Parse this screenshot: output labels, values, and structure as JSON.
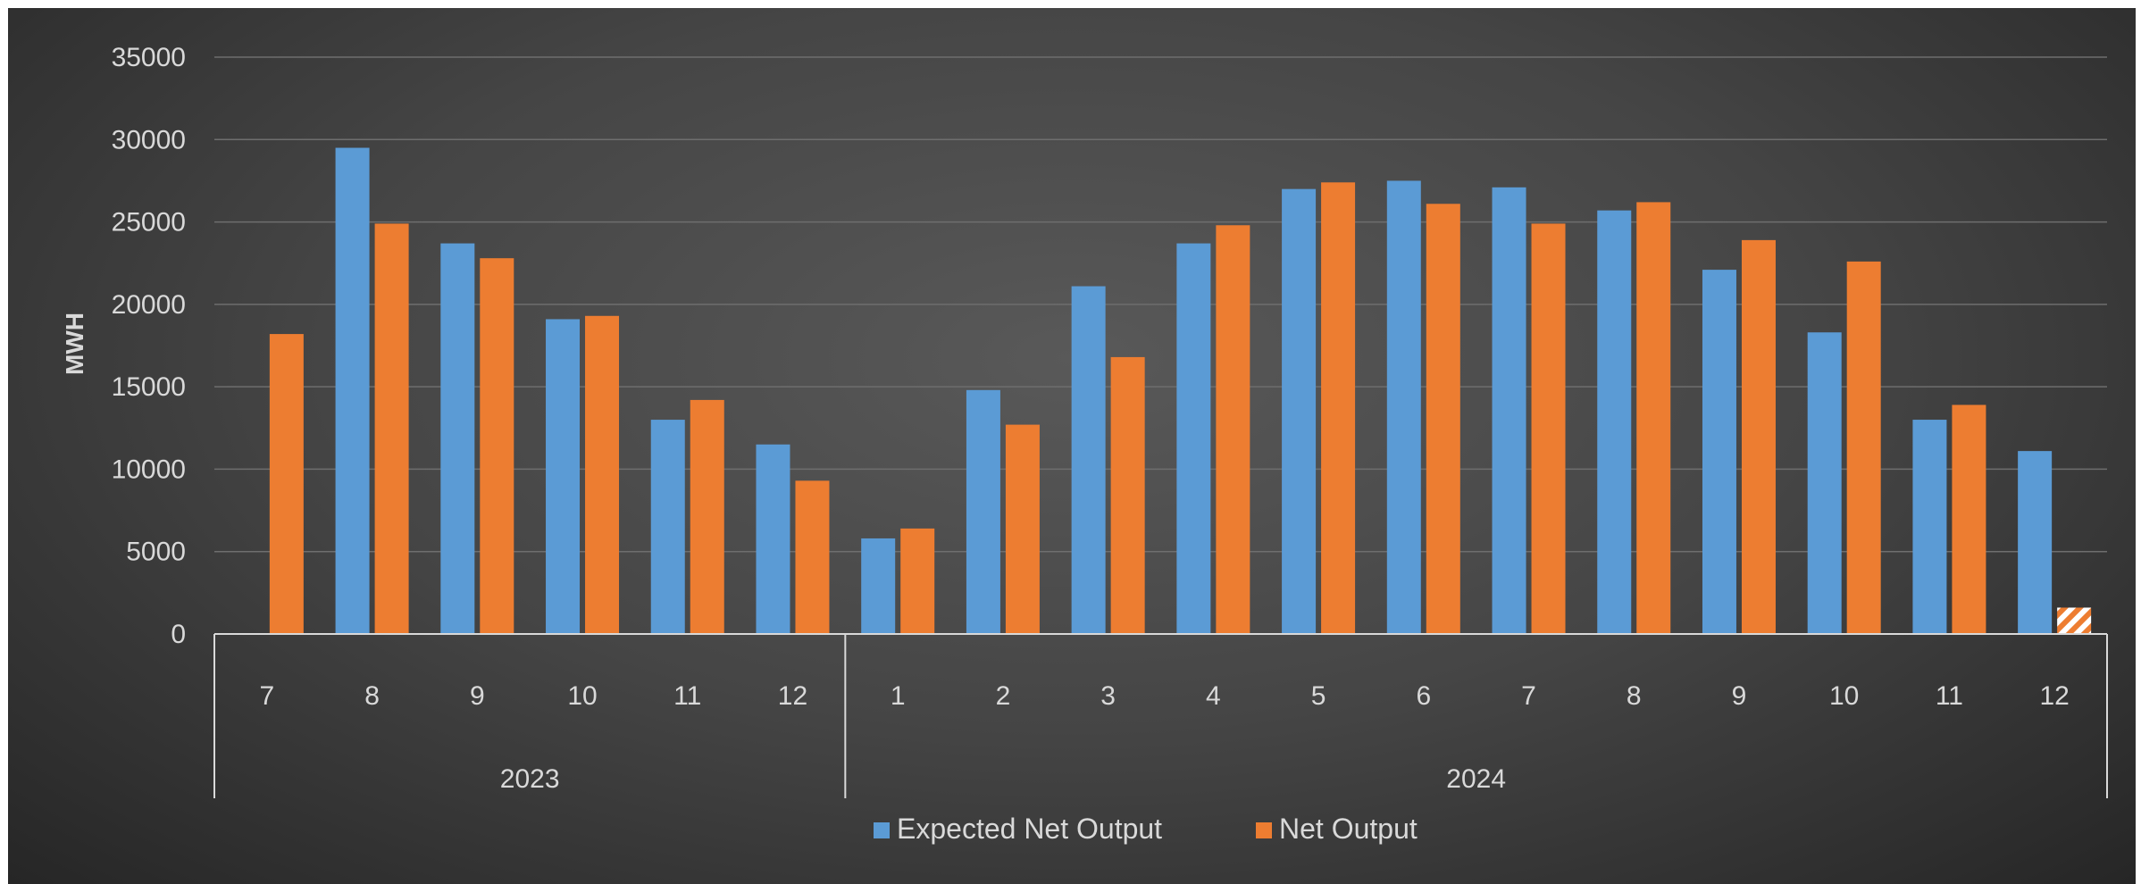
{
  "chart_data": {
    "type": "bar",
    "ylabel": "MWH",
    "ylim": [
      0,
      35000
    ],
    "y_ticks": [
      0,
      5000,
      10000,
      15000,
      20000,
      25000,
      30000,
      35000
    ],
    "grid": true,
    "legend_position": "bottom",
    "groups": [
      {
        "label": "2023",
        "categories": [
          "7",
          "8",
          "9",
          "10",
          "11",
          "12"
        ]
      },
      {
        "label": "2024",
        "categories": [
          "1",
          "2",
          "3",
          "4",
          "5",
          "6",
          "7",
          "8",
          "9",
          "10",
          "11",
          "12"
        ]
      }
    ],
    "categories": [
      "7",
      "8",
      "9",
      "10",
      "11",
      "12",
      "1",
      "2",
      "3",
      "4",
      "5",
      "6",
      "7",
      "8",
      "9",
      "10",
      "11",
      "12"
    ],
    "series": [
      {
        "name": "Expected Net Output",
        "color": "#5b9bd5",
        "values": [
          null,
          29500,
          23700,
          19100,
          13000,
          11500,
          5800,
          14800,
          21100,
          23700,
          27000,
          27500,
          27100,
          25700,
          22100,
          18300,
          13000,
          11100
        ]
      },
      {
        "name": "Net Output",
        "color": "#ed7d31",
        "values": [
          18200,
          24900,
          22800,
          19300,
          14200,
          9300,
          6400,
          12700,
          16800,
          24800,
          27400,
          26100,
          24900,
          26200,
          23900,
          22600,
          13900,
          1600
        ],
        "hatched_index": 17
      }
    ]
  }
}
